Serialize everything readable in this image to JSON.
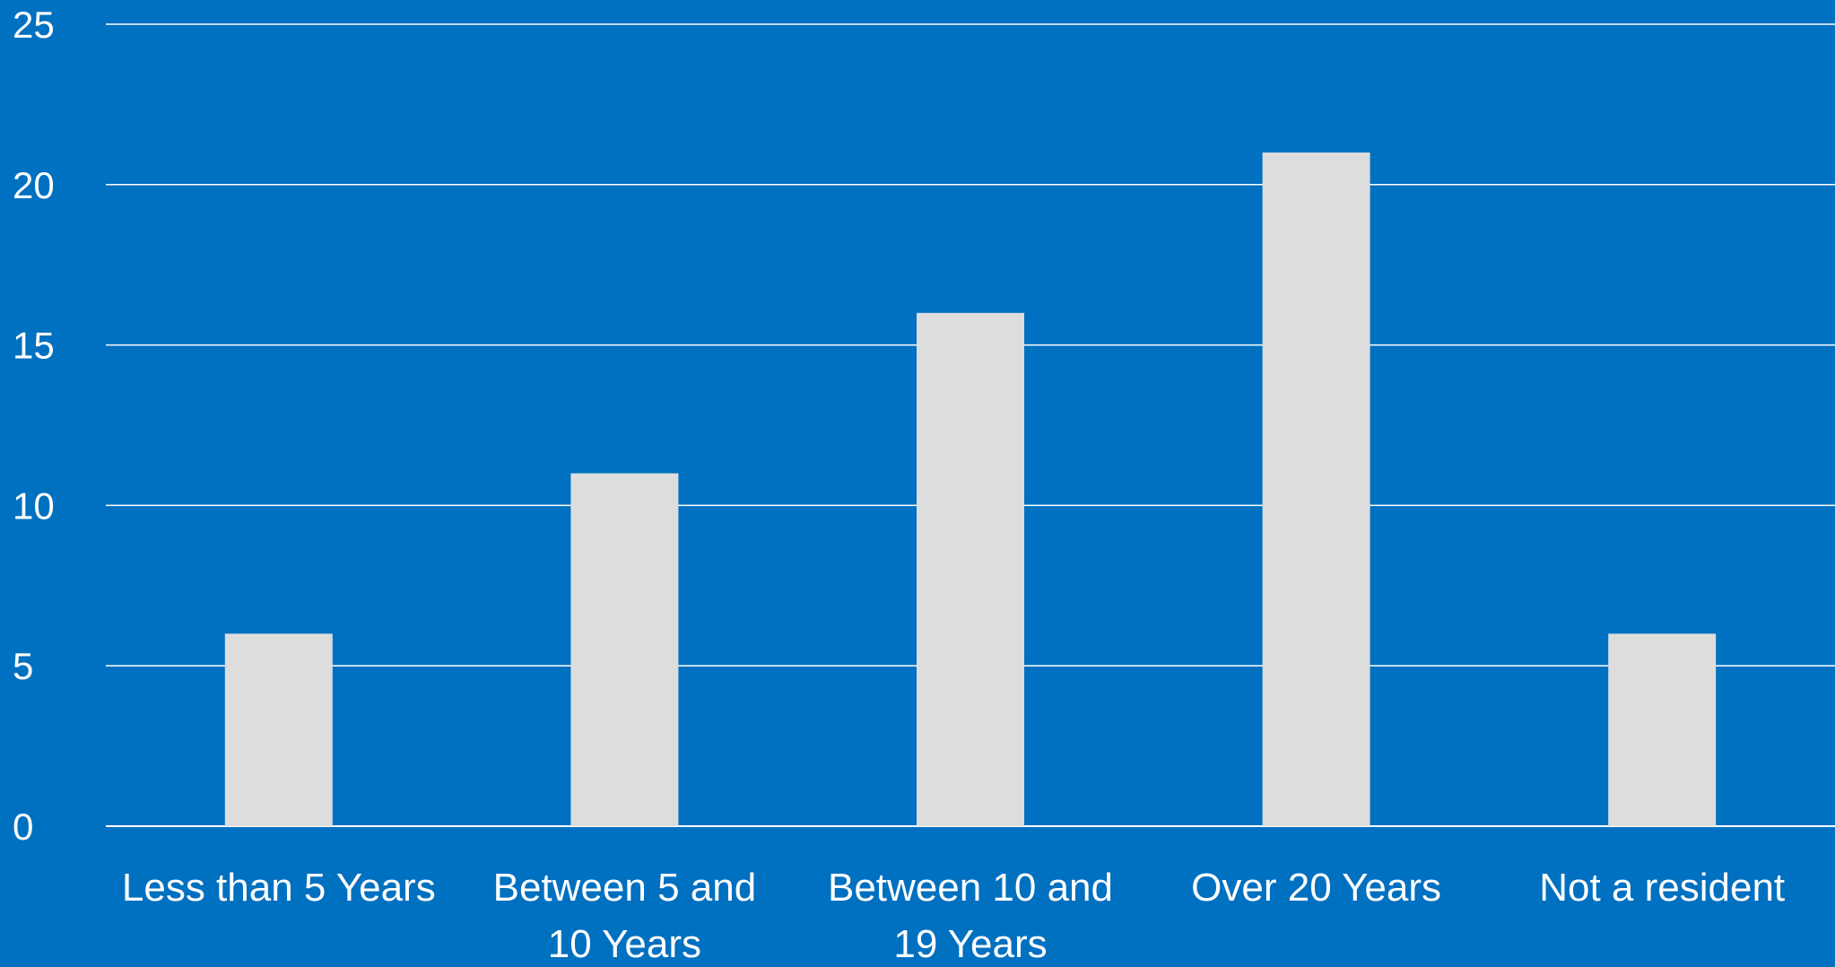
{
  "colors": {
    "background": "#0070C0",
    "bar": "#DDDDDD",
    "gridline": "#FFFFFF",
    "text": "#FFFFFF"
  },
  "chart_data": {
    "type": "bar",
    "title": "",
    "xlabel": "",
    "ylabel": "",
    "categories": [
      [
        "Less than 5 Years"
      ],
      [
        "Between 5 and",
        "10 Years"
      ],
      [
        "Between 10 and",
        "19 Years"
      ],
      [
        "Over 20 Years"
      ],
      [
        "Not a resident"
      ]
    ],
    "values": [
      6,
      11,
      16,
      21,
      6
    ],
    "ylim": [
      0,
      25
    ],
    "yticks": [
      0,
      5,
      10,
      15,
      20,
      25
    ],
    "grid": true,
    "legend": "none"
  }
}
